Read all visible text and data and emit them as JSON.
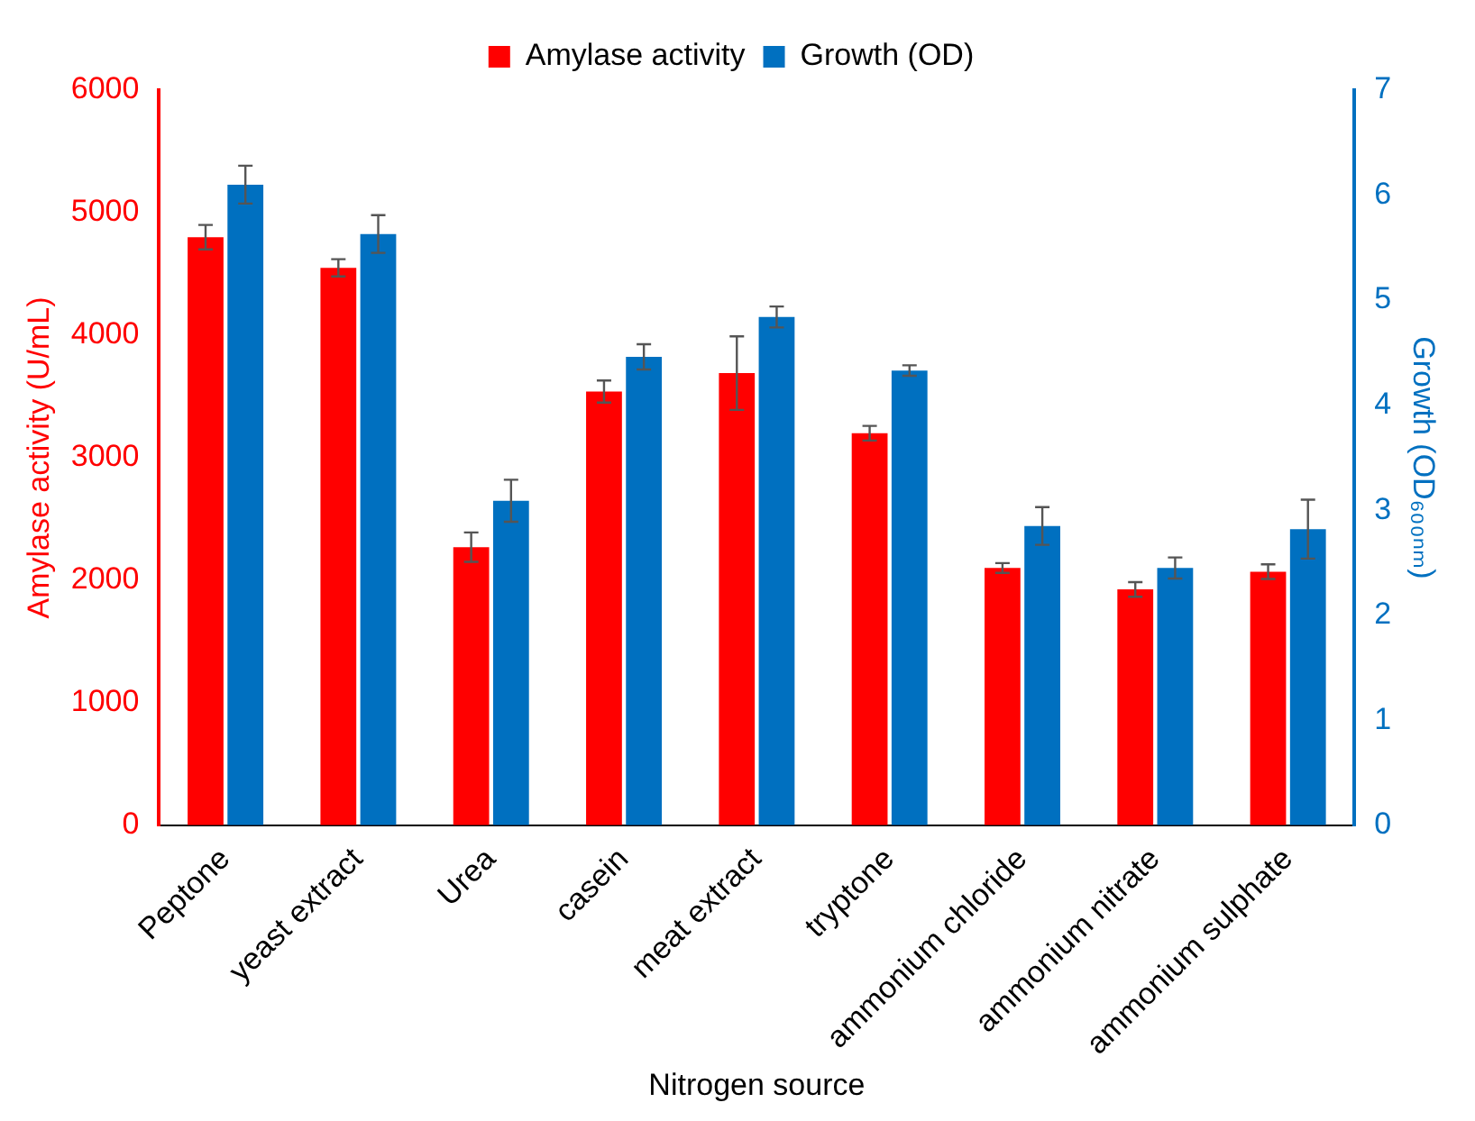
{
  "chart_data": {
    "type": "bar",
    "xlabel": "Nitrogen source",
    "ylabel": "Amylase activity (U/mL)",
    "y2label": "Growth (OD₆₀₀ₙₘ)",
    "categories": [
      "Peptone",
      "yeast extract",
      "Urea",
      "casein",
      "meat extract",
      "tryptone",
      "ammonium chloride",
      "ammonium nitrate",
      "ammonium sulphate"
    ],
    "series": [
      {
        "name": "Amylase activity",
        "color": "#ff0000",
        "values": [
          4800,
          4550,
          2270,
          3540,
          3690,
          3200,
          2100,
          1925,
          2070
        ],
        "errors": [
          100,
          70,
          120,
          90,
          300,
          60,
          40,
          60,
          60
        ]
      },
      {
        "name": "Growth (OD)",
        "color": "#0070c0",
        "axis": "y2",
        "values": [
          6.1,
          5.63,
          3.09,
          4.46,
          4.84,
          4.33,
          2.85,
          2.45,
          2.82
        ],
        "errors": [
          0.18,
          0.18,
          0.2,
          0.12,
          0.1,
          0.05,
          0.18,
          0.1,
          0.28
        ]
      }
    ],
    "ylim": [
      0,
      6000
    ],
    "yticks": [
      0,
      1000,
      2000,
      3000,
      4000,
      5000,
      6000
    ],
    "y2lim": [
      0,
      7
    ],
    "y2ticks": [
      0,
      1,
      2,
      3,
      4,
      5,
      6,
      7
    ],
    "grid": false,
    "legend": "top"
  }
}
